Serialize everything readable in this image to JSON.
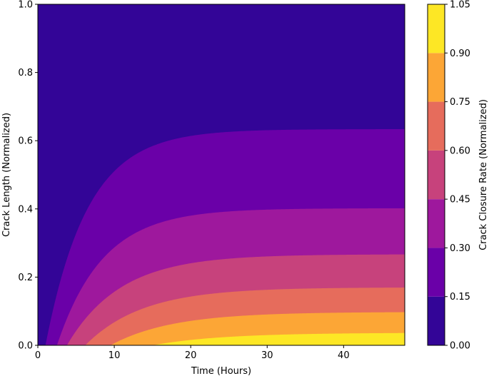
{
  "chart_data": {
    "type": "filled-contour",
    "title": "",
    "xlabel": "Time (Hours)",
    "ylabel": "Crack Length (Normalized)",
    "colorbar_label": "Crack Closure Rate (Normalized)",
    "xlim": [
      0,
      48
    ],
    "ylim": [
      0,
      1
    ],
    "x_ticks": [
      0,
      10,
      20,
      30,
      40
    ],
    "y_ticks": [
      0.0,
      0.2,
      0.4,
      0.6,
      0.8,
      1.0
    ],
    "colorbar_ticks": [
      "0.00",
      "0.15",
      "0.30",
      "0.45",
      "0.60",
      "0.75",
      "0.90",
      "1.05"
    ],
    "levels": [
      0.0,
      0.15,
      0.3,
      0.45,
      0.6,
      0.75,
      0.9,
      1.05
    ],
    "colors": [
      "#330597",
      "#6a00a8",
      "#9e189d",
      "#c7427c",
      "#e66c5c",
      "#fca636",
      "#fde725"
    ],
    "colormap": "plasma",
    "contour_boundaries": [
      {
        "level": 0.15,
        "asymptote_length": 0.634,
        "onset_hours": 1.0,
        "time_constant_hours": 5.5
      },
      {
        "level": 0.3,
        "asymptote_length": 0.402,
        "onset_hours": 2.5,
        "time_constant_hours": 6.0
      },
      {
        "level": 0.45,
        "asymptote_length": 0.267,
        "onset_hours": 3.8,
        "time_constant_hours": 7.0
      },
      {
        "level": 0.6,
        "asymptote_length": 0.17,
        "onset_hours": 6.2,
        "time_constant_hours": 7.5
      },
      {
        "level": 0.75,
        "asymptote_length": 0.098,
        "onset_hours": 9.5,
        "time_constant_hours": 8.0
      },
      {
        "level": 0.9,
        "asymptote_length": 0.037,
        "onset_hours": 15.0,
        "time_constant_hours": 9.0
      }
    ]
  }
}
